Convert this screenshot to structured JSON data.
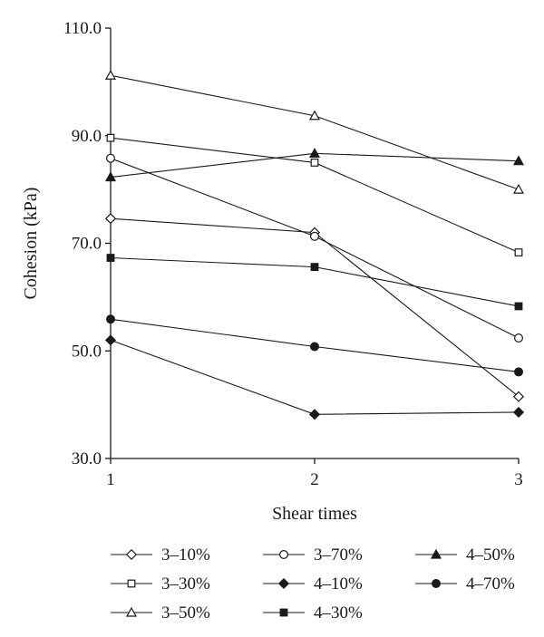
{
  "chart_data": {
    "type": "line",
    "xlabel": "Shear times",
    "ylabel": "Cohesion (kPa)",
    "x": [
      1,
      2,
      3
    ],
    "xticks": [
      "1",
      "2",
      "3"
    ],
    "ylim": [
      30.0,
      110.0
    ],
    "yticks": [
      "30.0",
      "50.0",
      "70.0",
      "90.0",
      "110.0"
    ],
    "grid": false,
    "legend_position": "bottom",
    "series": [
      {
        "name": "3–10%",
        "marker": "diamond",
        "fill": "open",
        "values": [
          74.6,
          72.0,
          41.5
        ]
      },
      {
        "name": "3–30%",
        "marker": "square",
        "fill": "open",
        "values": [
          89.6,
          85.0,
          68.3
        ]
      },
      {
        "name": "3–50%",
        "marker": "triangle",
        "fill": "open",
        "values": [
          101.2,
          93.7,
          80.0
        ]
      },
      {
        "name": "3–70%",
        "marker": "circle",
        "fill": "open",
        "values": [
          85.8,
          71.3,
          52.4
        ]
      },
      {
        "name": "4–10%",
        "marker": "diamond",
        "fill": "filled",
        "values": [
          52.0,
          38.2,
          38.6
        ]
      },
      {
        "name": "4–30%",
        "marker": "square",
        "fill": "filled",
        "values": [
          67.3,
          65.6,
          58.3
        ]
      },
      {
        "name": "4–50%",
        "marker": "triangle",
        "fill": "filled",
        "values": [
          82.3,
          86.7,
          85.3
        ]
      },
      {
        "name": "4–70%",
        "marker": "circle",
        "fill": "filled",
        "values": [
          55.9,
          50.8,
          46.1
        ]
      }
    ],
    "colors": {
      "line": "#1a1a1a",
      "open_fill": "#ffffff"
    }
  }
}
